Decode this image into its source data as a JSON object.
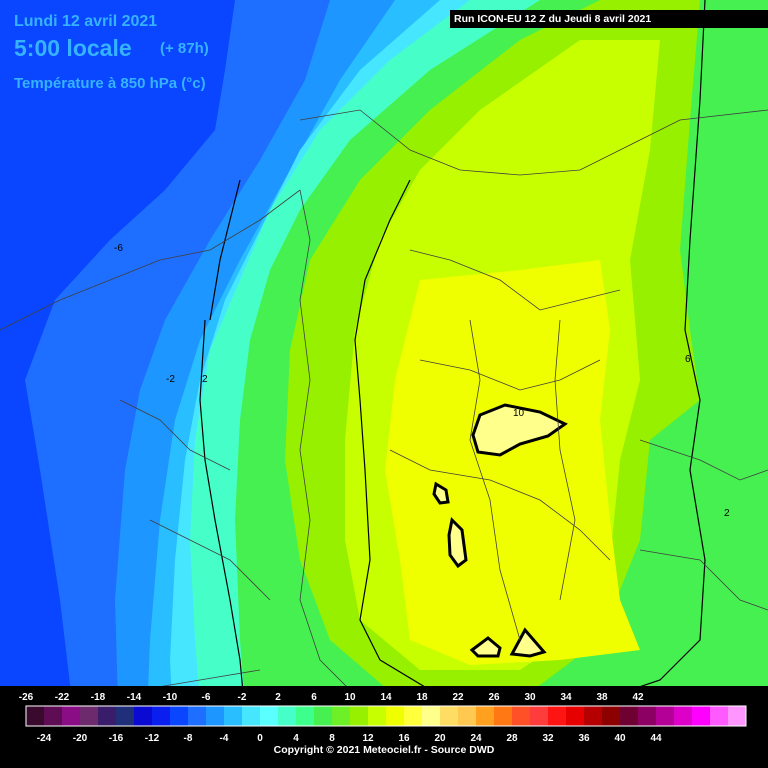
{
  "header": {
    "date": "Lundi 12 avril 2021",
    "time": "5:00 locale",
    "lead": "(+ 87h)",
    "variable": "Température à 850 hPa (°c)",
    "run": "Run ICON-EU 12 Z du Jeudi 8 avril 2021"
  },
  "contour_labels": [
    "-6",
    "-2",
    "2",
    "10",
    "6",
    "2"
  ],
  "scale": {
    "top_labels": [
      "-26",
      "-22",
      "-18",
      "-14",
      "-10",
      "-6",
      "-2",
      "2",
      "6",
      "10",
      "14",
      "18",
      "22",
      "26",
      "30",
      "34",
      "38",
      "42"
    ],
    "bottom_labels": [
      "-24",
      "-20",
      "-16",
      "-12",
      "-8",
      "-4",
      "0",
      "4",
      "8",
      "12",
      "16",
      "20",
      "24",
      "28",
      "32",
      "36",
      "40",
      "44"
    ],
    "colors": [
      "#3a0a2e",
      "#5e0c54",
      "#8a0d85",
      "#6d2b6d",
      "#3a1d6a",
      "#1f2f7a",
      "#0a0ad2",
      "#0a1ef0",
      "#0a46ff",
      "#1e6eff",
      "#1e96ff",
      "#28beff",
      "#46e6ff",
      "#5affff",
      "#46ffc8",
      "#3cff8c",
      "#46f050",
      "#6ef028",
      "#96f000",
      "#c8ff00",
      "#f0ff00",
      "#ffff3c",
      "#ffff8c",
      "#ffdc64",
      "#ffc850",
      "#ffa01e",
      "#ff7814",
      "#ff5028",
      "#ff3c3c",
      "#ff1414",
      "#e60000",
      "#b40000",
      "#8c0000",
      "#6e0032",
      "#8c0064",
      "#b40096",
      "#dc00c8",
      "#ff00ff",
      "#ff5aff",
      "#ff96ff"
    ]
  },
  "copyright": "Copyright © 2021 Meteociel.fr - Source DWD"
}
